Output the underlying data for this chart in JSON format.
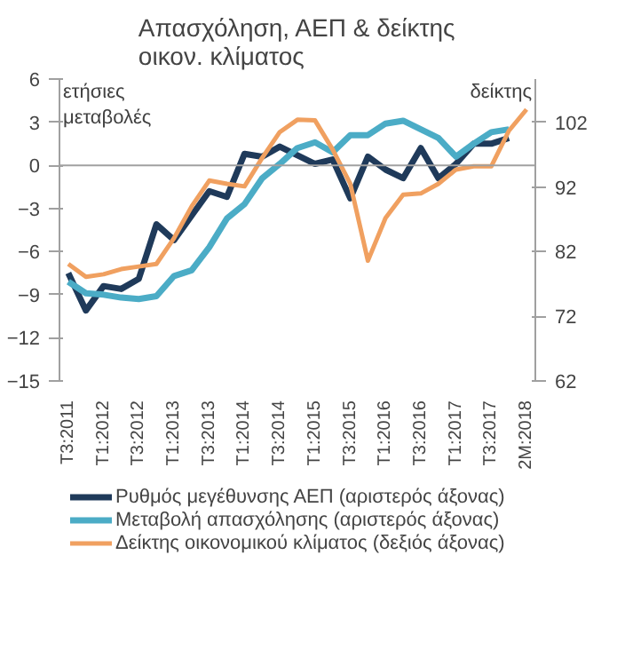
{
  "chart_data": {
    "type": "line",
    "title": "Απασχόληση, ΑΕΠ & δείκτης\nοικον. κλίματος",
    "categories": [
      "Τ3:2011",
      null,
      "Τ1:2012",
      null,
      "Τ3:2012",
      null,
      "Τ1:2013",
      null,
      "Τ3:2013",
      null,
      "Τ1:2014",
      null,
      "Τ3:2014",
      null,
      "Τ1:2015",
      null,
      "Τ3:2015",
      null,
      "Τ1:2016",
      null,
      "Τ3:2016",
      null,
      "Τ1:2017",
      null,
      "Τ3:2017",
      null,
      "2Μ:2018"
    ],
    "series": [
      {
        "name": "Ρυθμός μεγέθυνσης ΑΕΠ (αριστερός άξονας)",
        "color": "#1f3a5a",
        "values": [
          -7.5,
          -10.1,
          -8.4,
          -8.6,
          -7.9,
          -4.1,
          -5.2,
          -3.5,
          -1.8,
          -2.2,
          0.8,
          0.6,
          1.3,
          0.7,
          0.1,
          0.4,
          -2.3,
          0.6,
          -0.3,
          -0.9,
          1.2,
          -0.9,
          0.1,
          1.5,
          1.5,
          1.9,
          null
        ]
      },
      {
        "name": "Μεταβολή απασχόλησης (αριστερός άξονας)",
        "color": "#4bacc6",
        "values": [
          -8.1,
          -8.9,
          -9.0,
          -9.2,
          -9.3,
          -9.1,
          -7.7,
          -7.3,
          -5.7,
          -3.7,
          -2.7,
          -0.9,
          0.1,
          1.2,
          1.6,
          0.9,
          2.1,
          2.1,
          2.9,
          3.1,
          2.5,
          1.9,
          0.6,
          1.5,
          2.3,
          2.5,
          null
        ]
      },
      {
        "name": "Δείκτης οικονομικού κλίματος (δεξιός άξονας)",
        "color": "#f0a060",
        "axis": "y2",
        "values": [
          80.1,
          78.1,
          78.5,
          79.3,
          79.7,
          80.1,
          84.1,
          89.0,
          93.0,
          92.5,
          92.1,
          96.5,
          100.5,
          102.4,
          102.3,
          97.8,
          92.5,
          80.6,
          87.2,
          90.8,
          91.0,
          92.5,
          94.7,
          95.2,
          95.2,
          100.7,
          104.0
        ]
      }
    ],
    "ylim": [
      -15,
      6
    ],
    "yticks": [
      -15,
      -12,
      -9,
      -6,
      -3,
      0,
      3,
      6
    ],
    "y2lim": [
      62,
      108.7
    ],
    "y2ticks": [
      62,
      72,
      82,
      92,
      102
    ],
    "ref_lines": [
      {
        "axis": "y",
        "value": 0,
        "label": null,
        "color": "#a0a0a0"
      }
    ],
    "annotations": [
      "ετήσιες\nμεταβολές",
      "δείκτης"
    ],
    "grid": false,
    "legend": "bottom",
    "line_style": "solid",
    "marker": "none"
  }
}
